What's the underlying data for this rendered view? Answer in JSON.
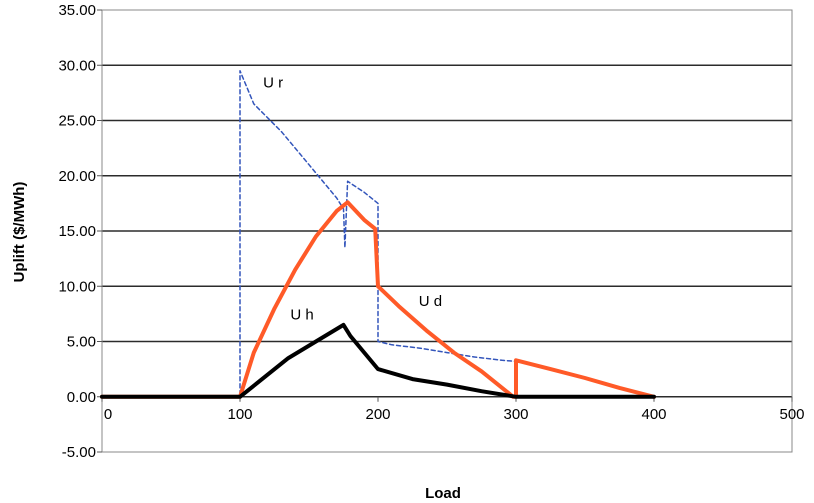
{
  "chart_data": {
    "type": "line",
    "xlabel": "Load",
    "ylabel": "Uplift ($/MWh)",
    "xlim": [
      0,
      500
    ],
    "ylim": [
      -5,
      35
    ],
    "x_ticks": [
      "0",
      "100",
      "200",
      "300",
      "400",
      "500"
    ],
    "y_ticks": [
      "-5.00",
      "0.00",
      "5.00",
      "10.00",
      "15.00",
      "20.00",
      "25.00",
      "30.00",
      "35.00"
    ],
    "grid": "horizontal",
    "series": [
      {
        "name": "U r",
        "color": "#3355bb",
        "style": "dashed",
        "points": [
          [
            0,
            0
          ],
          [
            100,
            0
          ],
          [
            100,
            29.5
          ],
          [
            110,
            26.5
          ],
          [
            130,
            24
          ],
          [
            150,
            21
          ],
          [
            170,
            18
          ],
          [
            175,
            17
          ],
          [
            176,
            13.5
          ],
          [
            178,
            19.5
          ],
          [
            190,
            18.5
          ],
          [
            200,
            17.5
          ],
          [
            200,
            5
          ],
          [
            210,
            4.7
          ],
          [
            230,
            4.4
          ],
          [
            250,
            4
          ],
          [
            270,
            3.6
          ],
          [
            290,
            3.3
          ],
          [
            300,
            3.2
          ]
        ]
      },
      {
        "name": "U d",
        "color": "#ff5a28",
        "style": "solid",
        "points": [
          [
            0,
            0
          ],
          [
            100,
            0
          ],
          [
            110,
            4
          ],
          [
            125,
            8
          ],
          [
            140,
            11.5
          ],
          [
            155,
            14.5
          ],
          [
            170,
            16.8
          ],
          [
            178,
            17.6
          ],
          [
            190,
            16
          ],
          [
            198,
            15.2
          ],
          [
            200,
            10
          ],
          [
            215,
            8.2
          ],
          [
            235,
            6
          ],
          [
            255,
            4
          ],
          [
            275,
            2.3
          ],
          [
            298,
            0
          ],
          [
            300,
            0
          ],
          [
            300,
            3.3
          ],
          [
            325,
            2.5
          ],
          [
            350,
            1.7
          ],
          [
            375,
            0.8
          ],
          [
            400,
            0
          ]
        ]
      },
      {
        "name": "U h",
        "color": "#000000",
        "style": "solid",
        "points": [
          [
            0,
            0
          ],
          [
            100,
            0
          ],
          [
            115,
            1.5
          ],
          [
            135,
            3.5
          ],
          [
            155,
            5
          ],
          [
            175,
            6.5
          ],
          [
            180,
            5.5
          ],
          [
            200,
            2.5
          ],
          [
            225,
            1.6
          ],
          [
            250,
            1.1
          ],
          [
            275,
            0.5
          ],
          [
            300,
            0
          ],
          [
            400,
            0
          ]
        ]
      }
    ],
    "annotations": [
      {
        "text": "U r",
        "x": 124,
        "y": 28
      },
      {
        "text": "U d",
        "x": 238,
        "y": 8.2
      },
      {
        "text": "U h",
        "x": 145,
        "y": 7
      }
    ]
  }
}
